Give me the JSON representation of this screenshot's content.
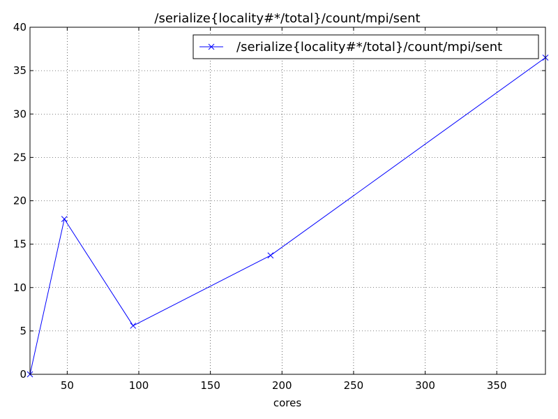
{
  "chart_data": {
    "type": "line",
    "title": "/serialize{locality#*/total}/count/mpi/sent",
    "xlabel": "cores",
    "ylabel": "",
    "xlim": [
      24,
      384
    ],
    "ylim": [
      0,
      40
    ],
    "xticks": [
      50,
      100,
      150,
      200,
      250,
      300,
      350
    ],
    "yticks": [
      0,
      5,
      10,
      15,
      20,
      25,
      30,
      35,
      40
    ],
    "grid": true,
    "legend_position": "top-right",
    "series": [
      {
        "name": "/serialize{locality#*/total}/count/mpi/sent",
        "color": "#0000ff",
        "marker": "x",
        "x": [
          24,
          48,
          96,
          192,
          384
        ],
        "y": [
          0,
          17.9,
          5.6,
          13.7,
          36.5
        ]
      }
    ]
  }
}
